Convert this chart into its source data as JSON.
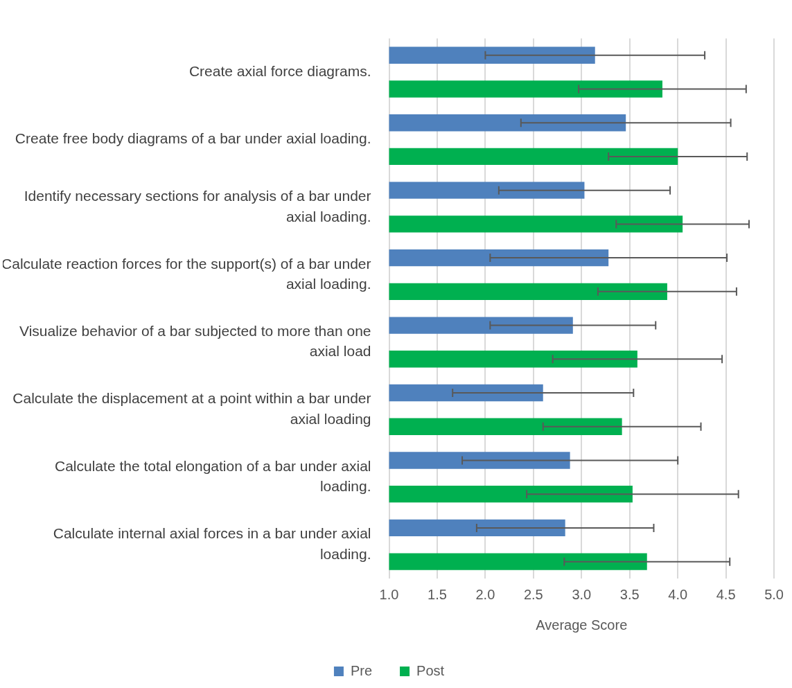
{
  "chart_data": {
    "type": "bar",
    "orientation": "horizontal",
    "xlabel": "Average Score",
    "categories": [
      "Create axial force diagrams.",
      "Create free body diagrams of a bar under axial loading.",
      "Identify necessary sections for analysis of a bar under axial loading.",
      "Calculate reaction forces for the support(s) of a bar under axial loading.",
      "Visualize behavior of a bar subjected to more than one axial load",
      "Calculate the displacement at a point within a bar under axial loading",
      "Calculate the total elongation of a bar under axial loading.",
      "Calculate internal axial forces in a bar under axial loading."
    ],
    "series": [
      {
        "name": "Pre",
        "color": "#4f81bd",
        "values": [
          3.14,
          3.46,
          3.03,
          3.28,
          2.91,
          2.6,
          2.88,
          2.83
        ],
        "errors": [
          1.14,
          1.09,
          0.89,
          1.23,
          0.86,
          0.94,
          1.12,
          0.92
        ]
      },
      {
        "name": "Post",
        "color": "#00b050",
        "values": [
          3.84,
          4.0,
          4.05,
          3.89,
          3.58,
          3.42,
          3.53,
          3.68
        ],
        "errors": [
          0.87,
          0.72,
          0.69,
          0.72,
          0.88,
          0.82,
          1.1,
          0.86
        ]
      }
    ],
    "xlim": [
      1.0,
      5.0
    ],
    "xticks": [
      {
        "value": 1.0,
        "label": "1.0"
      },
      {
        "value": 1.5,
        "label": "1.5"
      },
      {
        "value": 2.0,
        "label": "2.0"
      },
      {
        "value": 2.5,
        "label": "2.5"
      },
      {
        "value": 3.0,
        "label": "3.0"
      },
      {
        "value": 3.5,
        "label": "3.5"
      },
      {
        "value": 4.0,
        "label": "4.0"
      },
      {
        "value": 4.5,
        "label": "4.5"
      },
      {
        "value": 5.0,
        "label": "5.0"
      }
    ],
    "grid": "x",
    "legend": "bottom"
  }
}
